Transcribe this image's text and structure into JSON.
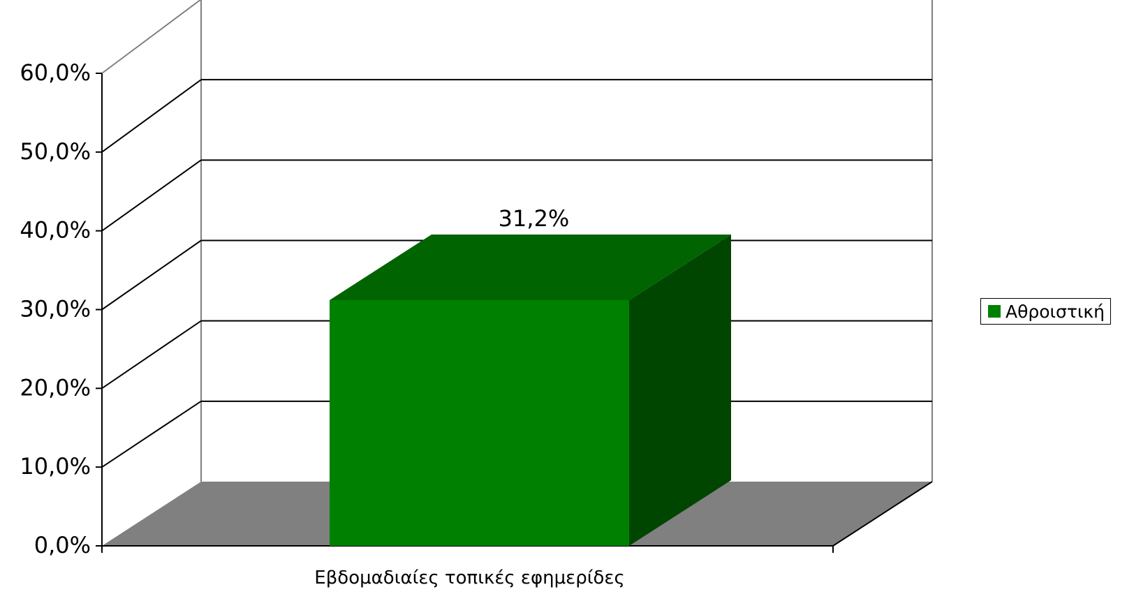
{
  "chart_data": {
    "type": "bar",
    "style": "3d-column",
    "categories": [
      "Εβδομαδιαίες τοπικές εφημερίδες"
    ],
    "series": [
      {
        "name": "Αθροιστική",
        "values": [
          31.2
        ],
        "color": "#008000"
      }
    ],
    "data_labels": [
      "31,2%"
    ],
    "y_ticks": [
      "0,0%",
      "10,0%",
      "20,0%",
      "30,0%",
      "40,0%",
      "50,0%",
      "60,0%"
    ],
    "ylim": [
      0,
      60
    ],
    "grid": true,
    "legend": "right",
    "colors": {
      "bar_front": "#008000",
      "bar_top": "#006400",
      "bar_side": "#004600",
      "floor": "#808080",
      "wall_edge": "#808080"
    }
  }
}
